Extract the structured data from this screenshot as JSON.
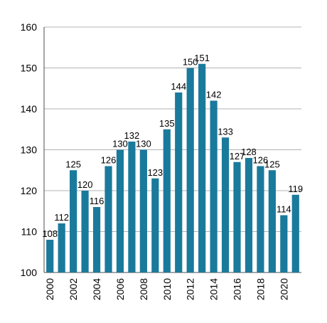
{
  "chart_data": {
    "type": "bar",
    "title": "",
    "xlabel": "",
    "ylabel": "",
    "ylim": [
      100,
      160
    ],
    "yticks": [
      100,
      110,
      120,
      130,
      140,
      150,
      160
    ],
    "grid": true,
    "categories": [
      "2000",
      "2001",
      "2002",
      "2003",
      "2004",
      "2005",
      "2006",
      "2007",
      "2008",
      "2009",
      "2010",
      "2011",
      "2012",
      "2013",
      "2014",
      "2015",
      "2016",
      "2017",
      "2018",
      "2019",
      "2020",
      "2021"
    ],
    "xtick_labels": [
      "2000",
      "2002",
      "2004",
      "2006",
      "2008",
      "2010",
      "2012",
      "2014",
      "2016",
      "2018",
      "2020"
    ],
    "values": [
      108,
      112,
      125,
      120,
      116,
      126,
      130,
      132,
      130,
      123,
      135,
      144,
      150,
      151,
      142,
      133,
      127,
      128,
      126,
      125,
      114,
      119
    ],
    "bar_color": "#1a7a9c"
  }
}
